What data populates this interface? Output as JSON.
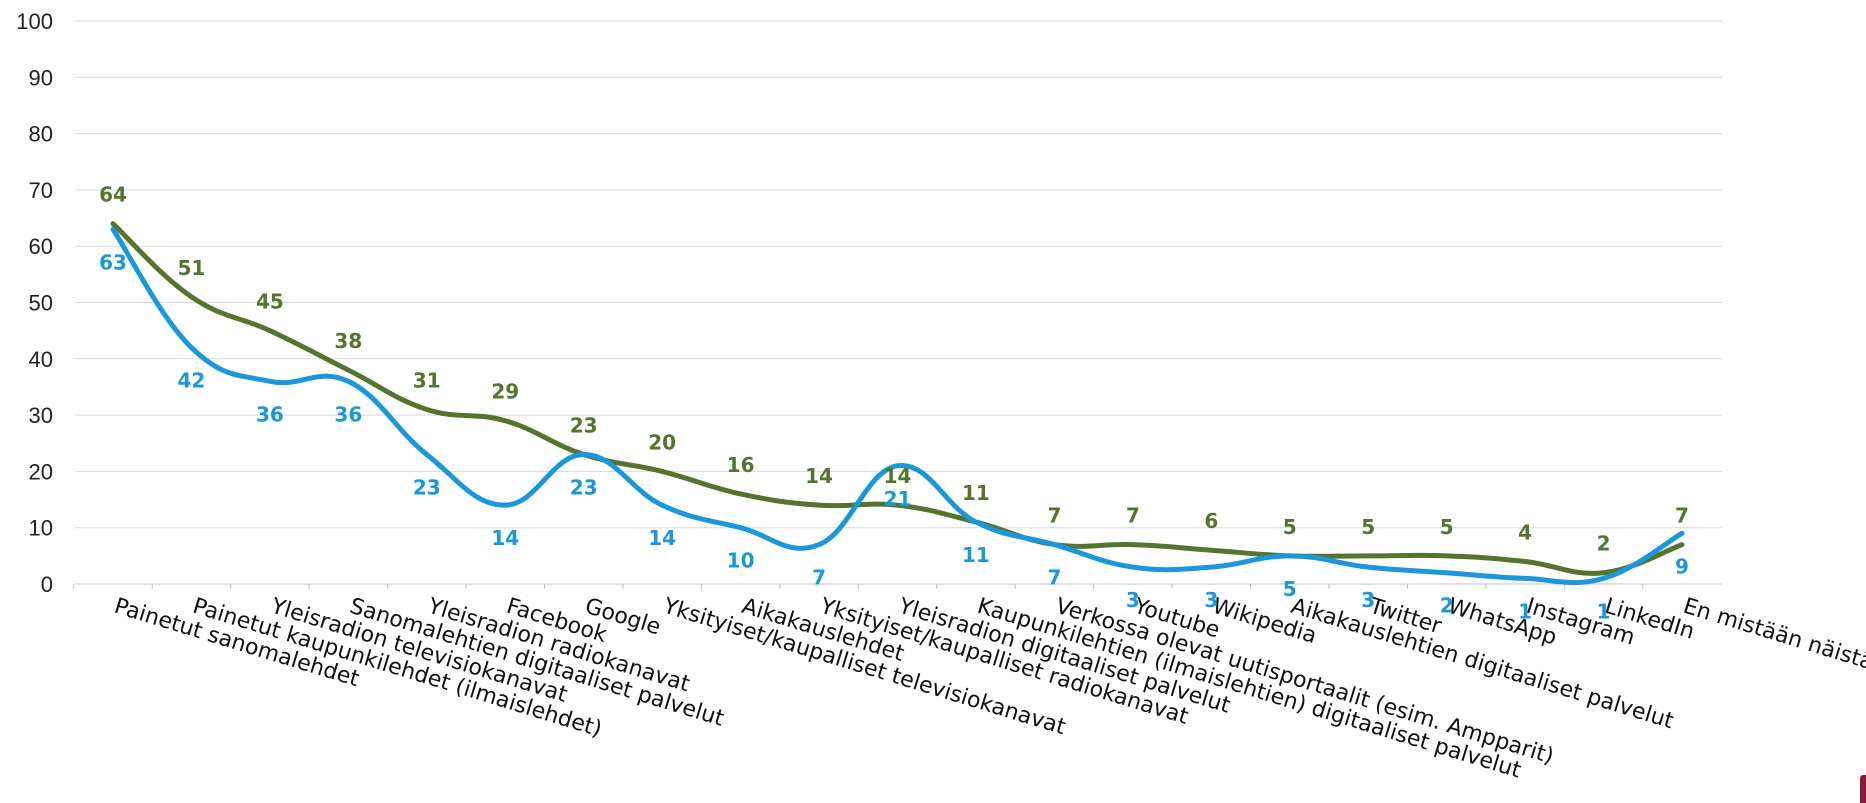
{
  "chart_data": {
    "type": "line",
    "categories": [
      "Painetut sanomalehdet",
      "Painetut kaupunkilehdet (ilmaislehdet)",
      "Yleisradion televisiokanavat",
      "Sanomalehtien digitaaliset palvelut",
      "Yleisradion radiokanavat",
      "Facebook",
      "Google",
      "Yksityiset/kaupalliset televisiokanavat",
      "Aikakauslehdet",
      "Yksityiset/kaupalliset radiokanavat",
      "Yleisradion digitaaliset palvelut",
      "Kaupunkilehtien (ilmaislehtien) digitaaliset palvelut",
      "Verkossa olevat uutisportaalit (esim. Ampparit)",
      "Youtube",
      "Wikipedia",
      "Aikakauslehtien digitaaliset palvelut",
      "Twitter",
      "WhatsApp",
      "Instagram",
      "LinkedIn",
      "En mistään näistä"
    ],
    "series": [
      {
        "values": [
          64,
          51,
          45,
          38,
          31,
          29,
          23,
          20,
          16,
          14,
          14,
          11,
          7,
          7,
          6,
          5,
          5,
          5,
          4,
          2,
          7
        ],
        "color": "#55752f",
        "label_position": "above"
      },
      {
        "values": [
          63,
          42,
          36,
          36,
          23,
          14,
          23,
          14,
          10,
          7,
          21,
          11,
          7,
          3,
          3,
          5,
          3,
          2,
          1,
          1,
          9
        ],
        "color": "#1b97dc",
        "label_position": "below"
      }
    ],
    "ylim": [
      0,
      100
    ],
    "yticks": [
      "0",
      "10",
      "20",
      "30",
      "40",
      "50",
      "60",
      "70",
      "80",
      "90",
      "100"
    ],
    "grid": true,
    "legend": "none",
    "title": "",
    "xlabel": "",
    "ylabel": ""
  }
}
